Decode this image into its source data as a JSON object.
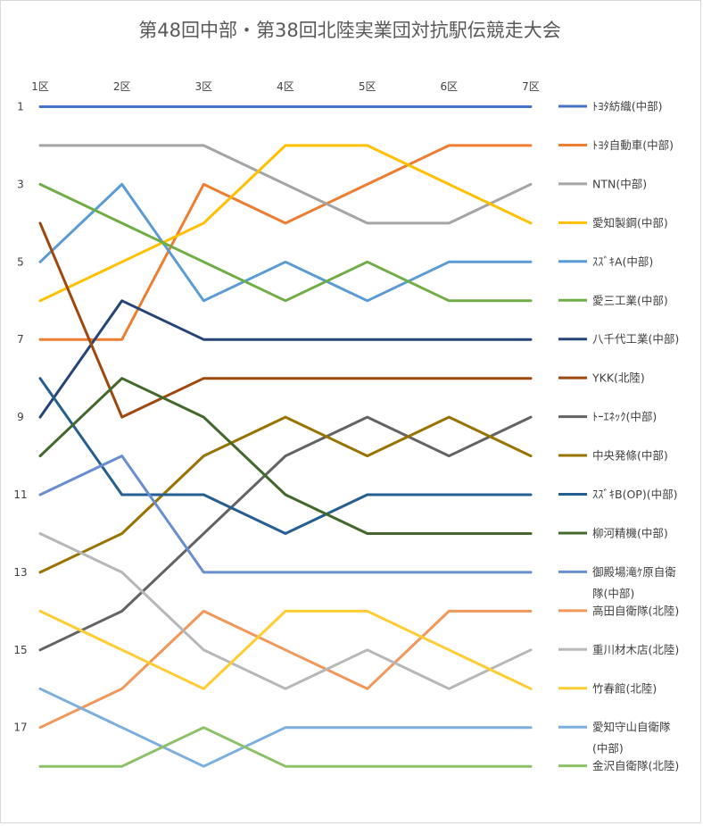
{
  "chart_data": {
    "type": "line",
    "title": "第48回中部・第38回北陸実業団対抗駅伝競走大会",
    "xlabel": "",
    "ylabel": "",
    "categories": [
      "1区",
      "2区",
      "3区",
      "4区",
      "5区",
      "6区",
      "7区"
    ],
    "y_axis": {
      "reversed": true,
      "min": 1,
      "max": 18,
      "tick_labels": [
        "1",
        "3",
        "5",
        "7",
        "9",
        "11",
        "13",
        "15",
        "17"
      ]
    },
    "grid": false,
    "legend": "right",
    "series": [
      {
        "name": "ﾄﾖﾀ紡織(中部)",
        "legend_lines": [
          "ﾄﾖﾀ紡織(中部)"
        ],
        "color": "#4472c4",
        "values": [
          1,
          1,
          1,
          1,
          1,
          1,
          1
        ]
      },
      {
        "name": "ﾄﾖﾀ自動車(中部)",
        "legend_lines": [
          "ﾄﾖﾀ自動車(中部)"
        ],
        "color": "#ed7d31",
        "values": [
          7,
          7,
          3,
          4,
          3,
          2,
          2
        ]
      },
      {
        "name": "NTN(中部)",
        "legend_lines": [
          "NTN(中部)"
        ],
        "color": "#a5a5a5",
        "values": [
          2,
          2,
          2,
          3,
          4,
          4,
          3
        ]
      },
      {
        "name": "愛知製鋼(中部)",
        "legend_lines": [
          "愛知製鋼(中部)"
        ],
        "color": "#ffc000",
        "values": [
          6,
          5,
          4,
          2,
          2,
          3,
          4
        ]
      },
      {
        "name": "ｽｽﾞｷA(中部)",
        "legend_lines": [
          "ｽｽﾞｷA(中部)"
        ],
        "color": "#5b9bd5",
        "values": [
          5,
          3,
          6,
          5,
          6,
          5,
          5
        ]
      },
      {
        "name": "愛三工業(中部)",
        "legend_lines": [
          "愛三工業(中部)"
        ],
        "color": "#70ad47",
        "values": [
          3,
          4,
          5,
          6,
          5,
          6,
          6
        ]
      },
      {
        "name": "八千代工業(中部)",
        "legend_lines": [
          "八千代工業(中部)"
        ],
        "color": "#264478",
        "values": [
          9,
          6,
          7,
          7,
          7,
          7,
          7
        ]
      },
      {
        "name": "YKK(北陸)",
        "legend_lines": [
          "YKK(北陸)"
        ],
        "color": "#9e480e",
        "values": [
          4,
          9,
          8,
          8,
          8,
          8,
          8
        ]
      },
      {
        "name": "ﾄｰｴﾈｯｸ(中部)",
        "legend_lines": [
          "ﾄｰｴﾈｯｸ(中部)"
        ],
        "color": "#636363",
        "values": [
          15,
          14,
          12,
          10,
          9,
          10,
          9
        ]
      },
      {
        "name": "中央発條(中部)",
        "legend_lines": [
          "中央発條(中部)"
        ],
        "color": "#997300",
        "values": [
          13,
          12,
          10,
          9,
          10,
          9,
          10
        ]
      },
      {
        "name": "ｽｽﾞｷB(OP)(中部)",
        "legend_lines": [
          "ｽｽﾞｷB(OP)(中部)"
        ],
        "color": "#255e91",
        "values": [
          8,
          11,
          11,
          12,
          11,
          11,
          11
        ]
      },
      {
        "name": "柳河精機(中部)",
        "legend_lines": [
          "柳河精機(中部)"
        ],
        "color": "#43682b",
        "values": [
          10,
          8,
          9,
          11,
          12,
          12,
          12
        ]
      },
      {
        "name": "御殿場滝ｹ原自衛隊(中部)",
        "legend_lines": [
          "御殿場滝ｹ原自衛",
          "隊(中部)"
        ],
        "color": "#698ed0",
        "values": [
          11,
          10,
          13,
          13,
          13,
          13,
          13
        ]
      },
      {
        "name": "高田自衛隊(北陸)",
        "legend_lines": [
          "高田自衛隊(北陸)"
        ],
        "color": "#f1975a",
        "values": [
          17,
          16,
          14,
          15,
          16,
          14,
          14
        ]
      },
      {
        "name": "重川材木店(北陸)",
        "legend_lines": [
          "重川材木店(北陸)"
        ],
        "color": "#b7b7b7",
        "values": [
          12,
          13,
          15,
          16,
          15,
          16,
          15
        ]
      },
      {
        "name": "竹春館(北陸)",
        "legend_lines": [
          "竹春館(北陸)"
        ],
        "color": "#ffcd33",
        "values": [
          14,
          15,
          16,
          14,
          14,
          15,
          16
        ]
      },
      {
        "name": "愛知守山自衛隊(中部)",
        "legend_lines": [
          "愛知守山自衛隊",
          "(中部)"
        ],
        "color": "#7cafdd",
        "values": [
          16,
          17,
          18,
          17,
          17,
          17,
          17
        ]
      },
      {
        "name": "金沢自衛隊(北陸)",
        "legend_lines": [
          "金沢自衛隊(北陸)"
        ],
        "color": "#8cc168",
        "values": [
          18,
          18,
          17,
          18,
          18,
          18,
          18
        ]
      }
    ]
  }
}
